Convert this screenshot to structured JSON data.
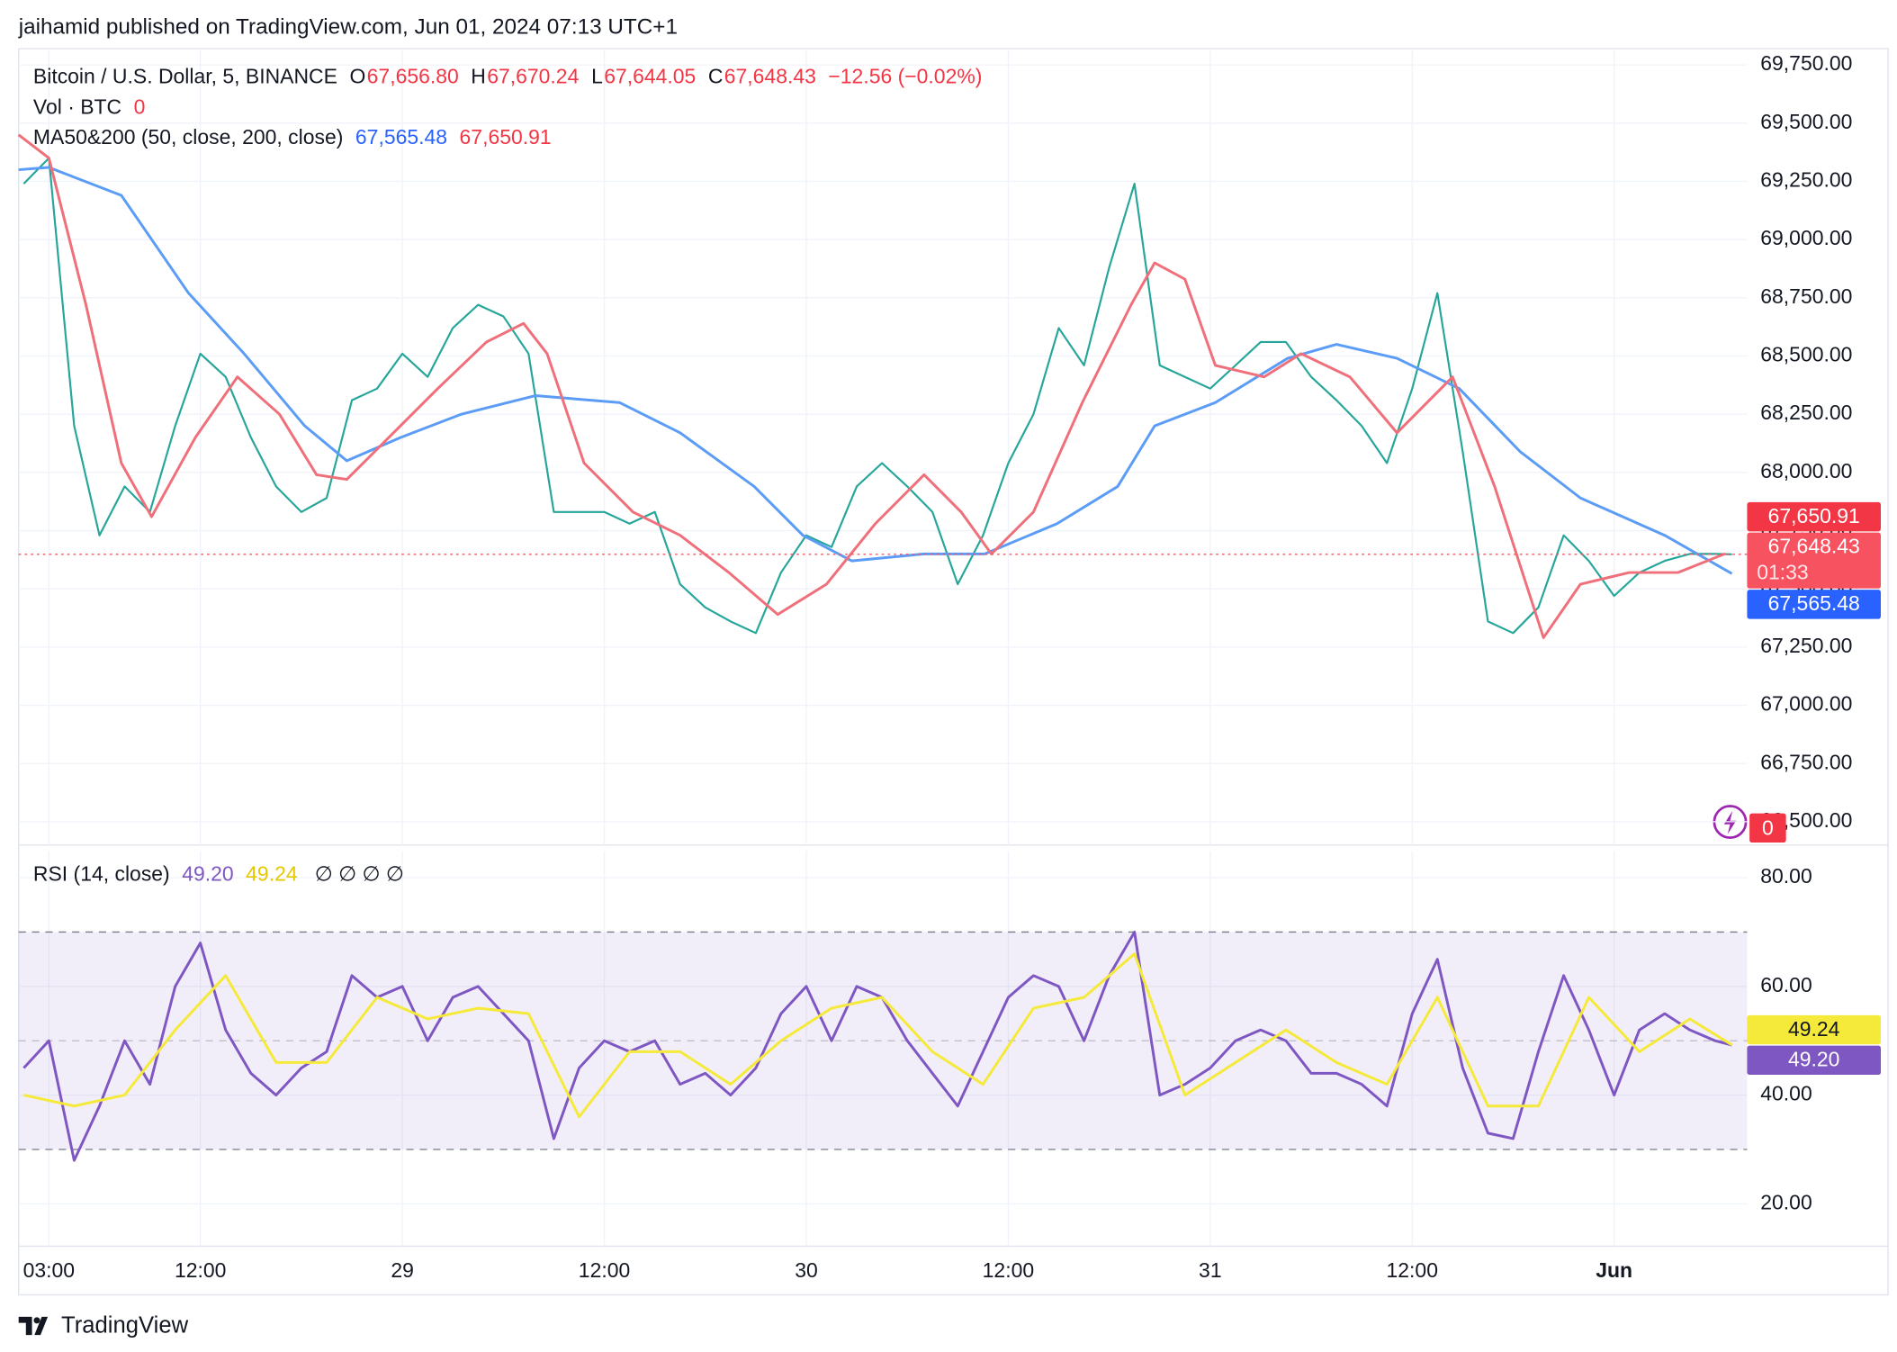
{
  "header": "jaihamid published on TradingView.com, Jun 01, 2024 07:13 UTC+1",
  "footer": "TradingView",
  "chart_data": [
    {
      "type": "line",
      "title": "Bitcoin / U.S. Dollar, 5, BINANCE",
      "ohlc": [
        {
          "key": "O",
          "value": 67656.8,
          "label": "67,656.80"
        },
        {
          "key": "H",
          "value": 67670.24,
          "label": "67,670.24"
        },
        {
          "key": "L",
          "value": 67644.05,
          "label": "67,644.05"
        }
      ],
      "close_key": "C",
      "change": {
        "value": -12.56,
        "label": "−12.56 (−0.02%)"
      },
      "volume": {
        "name": "Vol · BTC",
        "value": 0
      },
      "ma_legend": "MA50&200 (50, close, 200, close)",
      "xlim": [
        1.2,
        103.9
      ],
      "xticks": [
        {
          "value": 3,
          "label": "03:00"
        },
        {
          "value": 12,
          "label": "12:00"
        },
        {
          "value": 24,
          "label": "29"
        },
        {
          "value": 36,
          "label": "12:00"
        },
        {
          "value": 48,
          "label": "30"
        },
        {
          "value": 60,
          "label": "12:00"
        },
        {
          "value": 72,
          "label": "31"
        },
        {
          "value": 84,
          "label": "12:00"
        },
        {
          "value": 96,
          "label": "Jun"
        }
      ],
      "ylim": [
        66400,
        69820
      ],
      "yticks": [
        {
          "value": 66500,
          "label": "66,500.00"
        },
        {
          "value": 66750,
          "label": "66,750.00"
        },
        {
          "value": 67000,
          "label": "67,000.00"
        },
        {
          "value": 67250,
          "label": "67,250.00"
        },
        {
          "value": 67500,
          "label": "67,500.00"
        },
        {
          "value": 67750,
          "label": "67,750.00"
        },
        {
          "value": 68000,
          "label": "68,000.00"
        },
        {
          "value": 68250,
          "label": "68,250.00"
        },
        {
          "value": 68500,
          "label": "68,500.00"
        },
        {
          "value": 68750,
          "label": "68,750.00"
        },
        {
          "value": 69000,
          "label": "69,000.00"
        },
        {
          "value": 69250,
          "label": "69,250.00"
        },
        {
          "value": 69500,
          "label": "69,500.00"
        },
        {
          "value": 69750,
          "label": "69,750.00"
        }
      ],
      "grid": true,
      "last_line": true,
      "series": [
        {
          "color": "#26a69a",
          "x": [
            1.5,
            3,
            4.5,
            6,
            7.5,
            9,
            10.5,
            12,
            13.5,
            15,
            16.5,
            18,
            19.5,
            21,
            22.5,
            24,
            25.5,
            27,
            28.5,
            30,
            31.5,
            33,
            34.5,
            36,
            37.5,
            39,
            40.5,
            42,
            43.5,
            45,
            46.5,
            48,
            49.5,
            51,
            52.5,
            54,
            55.5,
            57,
            58.5,
            60,
            61.5,
            63,
            64.5,
            66,
            67.5,
            69,
            70.5,
            72,
            73.5,
            75,
            76.5,
            78,
            79.5,
            81,
            82.5,
            84,
            85.5,
            87,
            88.5,
            90,
            91.5,
            93,
            94.5,
            96,
            97.5,
            99,
            100.5,
            102,
            103
          ],
          "values": [
            69240,
            69350,
            68200,
            67730,
            67940,
            67830,
            68200,
            68510,
            68410,
            68150,
            67940,
            67830,
            67890,
            68310,
            68360,
            68510,
            68410,
            68620,
            68720,
            68670,
            68510,
            67830,
            67830,
            67830,
            67780,
            67830,
            67520,
            67420,
            67360,
            67310,
            67570,
            67730,
            67680,
            67940,
            68040,
            67940,
            67830,
            67520,
            67730,
            68040,
            68250,
            68620,
            68460,
            68880,
            69240,
            68460,
            68410,
            68360,
            68460,
            68560,
            68560,
            68410,
            68310,
            68200,
            68040,
            68360,
            68770,
            68090,
            67360,
            67310,
            67420,
            67730,
            67620,
            67470,
            67570,
            67620,
            67650,
            67650,
            67648.43
          ]
        },
        {
          "color": "#5b9cf6",
          "x": [
            1.2,
            3,
            7.3,
            11.3,
            14.6,
            18.2,
            20.7,
            23.9,
            27.5,
            31.9,
            36.9,
            40.5,
            44.9,
            47.8,
            50.7,
            55,
            58.6,
            62.9,
            66.5,
            68.7,
            72.3,
            76.6,
            79.5,
            83.1,
            86.8,
            90.4,
            94,
            99,
            103
          ],
          "values": [
            69300,
            69310,
            69190,
            68770,
            68510,
            68200,
            68050,
            68150,
            68250,
            68330,
            68300,
            68170,
            67940,
            67730,
            67620,
            67650,
            67650,
            67780,
            67940,
            68200,
            68300,
            68490,
            68550,
            68490,
            68360,
            68090,
            67890,
            67730,
            67565.48
          ]
        },
        {
          "color": "#ef6f7a",
          "x": [
            1.2,
            3,
            5.2,
            7.3,
            9.1,
            11.7,
            14.2,
            16.7,
            18.9,
            20.7,
            23.2,
            26.1,
            29,
            31.2,
            32.6,
            34.8,
            37.7,
            40.5,
            43.4,
            46.3,
            49.2,
            52.1,
            55,
            57.2,
            59,
            61.5,
            64.4,
            67.3,
            68.7,
            70.5,
            72.3,
            75.2,
            77.4,
            80.3,
            83.1,
            86.4,
            88.9,
            91.8,
            94,
            96.9,
            99.8,
            102.6
          ],
          "values": [
            69450,
            69350,
            68720,
            68040,
            67810,
            68150,
            68410,
            68250,
            67990,
            67970,
            68150,
            68360,
            68560,
            68640,
            68510,
            68040,
            67830,
            67730,
            67570,
            67390,
            67520,
            67780,
            67990,
            67830,
            67650,
            67830,
            68300,
            68720,
            68900,
            68830,
            68460,
            68410,
            68510,
            68410,
            68170,
            68410,
            67940,
            67290,
            67520,
            67570,
            67570,
            67650.91
          ]
        }
      ],
      "badges": [
        {
          "value": 67650.91,
          "label": "67,650.91",
          "color": "#f23645",
          "text_color": "#ffffff"
        },
        {
          "value": 67648.43,
          "label": "67,648.43",
          "sublabel": "01:33",
          "color": "#f7525f",
          "text_color": "#ffffff"
        },
        {
          "value": 67565.48,
          "label": "67,565.48",
          "color": "#2962ff",
          "text_color": "#ffffff"
        }
      ]
    },
    {
      "type": "line",
      "title": "RSI (14, close)",
      "extras": "∅ ∅ ∅ ∅",
      "ylim": [
        12.2,
        84.9
      ],
      "yticks": [
        {
          "value": 20,
          "label": "20.00"
        },
        {
          "value": 40,
          "label": "40.00"
        },
        {
          "value": 60,
          "label": "60.00"
        },
        {
          "value": 80,
          "label": "80.00"
        }
      ],
      "band": [
        30,
        70
      ],
      "midline": 50,
      "band_color": "#7e57c2",
      "grid": true,
      "series": [
        {
          "color": "#7e57c2",
          "x": [
            1.5,
            3,
            4.5,
            6,
            7.5,
            9,
            10.5,
            12,
            13.5,
            15,
            16.5,
            18,
            19.5,
            21,
            22.5,
            24,
            25.5,
            27,
            28.5,
            30,
            31.5,
            33,
            34.5,
            36,
            37.5,
            39,
            40.5,
            42,
            43.5,
            45,
            46.5,
            48,
            49.5,
            51,
            52.5,
            54,
            55.5,
            57,
            58.5,
            60,
            61.5,
            63,
            64.5,
            66,
            67.5,
            69,
            70.5,
            72,
            73.5,
            75,
            76.5,
            78,
            79.5,
            81,
            82.5,
            84,
            85.5,
            87,
            88.5,
            90,
            91.5,
            93,
            94.5,
            96,
            97.5,
            99,
            100.5,
            102,
            103
          ],
          "values": [
            45,
            50,
            28,
            38,
            50,
            42,
            60,
            68,
            52,
            44,
            40,
            45,
            48,
            62,
            58,
            60,
            50,
            58,
            60,
            55,
            50,
            32,
            45,
            50,
            48,
            50,
            42,
            44,
            40,
            45,
            55,
            60,
            50,
            60,
            58,
            50,
            44,
            38,
            48,
            58,
            62,
            60,
            50,
            62,
            70,
            40,
            42,
            45,
            50,
            52,
            50,
            44,
            44,
            42,
            38,
            55,
            65,
            45,
            33,
            32,
            48,
            62,
            52,
            40,
            52,
            55,
            52,
            50,
            49.2
          ]
        },
        {
          "color": "#f5e93a",
          "x": [
            1.5,
            4.5,
            7.5,
            10.5,
            13.5,
            16.5,
            19.5,
            22.5,
            25.5,
            28.5,
            31.5,
            34.5,
            37.5,
            40.5,
            43.5,
            46.5,
            49.5,
            52.5,
            55.5,
            58.5,
            61.5,
            64.5,
            67.5,
            70.5,
            73.5,
            76.5,
            79.5,
            82.5,
            85.5,
            88.5,
            91.5,
            94.5,
            97.5,
            100.5,
            103
          ],
          "values": [
            40,
            38,
            40,
            52,
            62,
            46,
            46,
            58,
            54,
            56,
            55,
            36,
            48,
            48,
            42,
            50,
            56,
            58,
            48,
            42,
            56,
            58,
            66,
            40,
            46,
            52,
            46,
            42,
            58,
            38,
            38,
            58,
            48,
            54,
            49.24
          ]
        }
      ],
      "badges": [
        {
          "value": 49.24,
          "label": "49.24",
          "color": "#f5e93a",
          "text_color": "#131722"
        },
        {
          "value": 49.2,
          "label": "49.20",
          "color": "#7e57c2",
          "text_color": "#ffffff"
        }
      ]
    }
  ]
}
